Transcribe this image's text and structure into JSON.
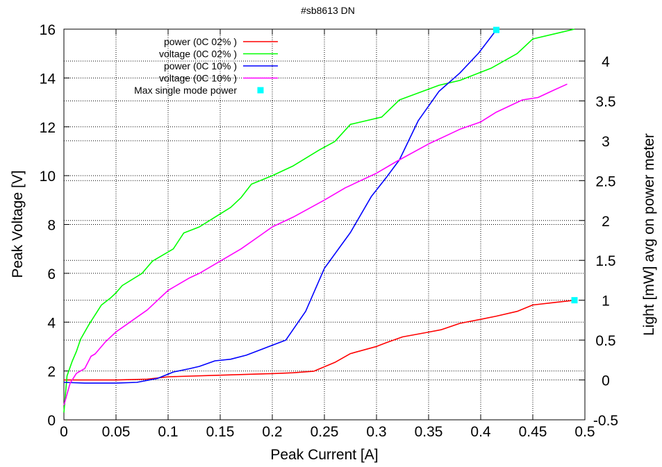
{
  "chart_data": {
    "type": "line",
    "title": "#sb8613 DN",
    "xlabel": "Peak Current [A]",
    "ylabel": "Peak Voltage [V]",
    "y2label": "Light [mW] avg on power meter",
    "xlim": [
      0,
      0.5
    ],
    "ylim": [
      0,
      16
    ],
    "y2lim": [
      -0.5,
      4.4
    ],
    "x_ticks": [
      "0",
      "0.05",
      "0.1",
      "0.15",
      "0.2",
      "0.25",
      "0.3",
      "0.35",
      "0.4",
      "0.45",
      "0.5"
    ],
    "y_ticks": [
      "0",
      "2",
      "4",
      "6",
      "8",
      "10",
      "12",
      "14",
      "16"
    ],
    "y2_ticks": [
      "-0.5",
      "0",
      "0.5",
      "1",
      "1.5",
      "2",
      "2.5",
      "3",
      "3.5",
      "4"
    ],
    "grid": true,
    "legend_position": "top-left",
    "series": [
      {
        "name": "power (0C 02% )",
        "axis": "y2",
        "color": "#ff0000",
        "points": [
          [
            0.0,
            0.0
          ],
          [
            0.02,
            0.0
          ],
          [
            0.05,
            0.0
          ],
          [
            0.08,
            0.01
          ],
          [
            0.1,
            0.04
          ],
          [
            0.15,
            0.06
          ],
          [
            0.2,
            0.08
          ],
          [
            0.22,
            0.09
          ],
          [
            0.24,
            0.11
          ],
          [
            0.26,
            0.22
          ],
          [
            0.275,
            0.33
          ],
          [
            0.3,
            0.42
          ],
          [
            0.31,
            0.47
          ],
          [
            0.325,
            0.54
          ],
          [
            0.35,
            0.6
          ],
          [
            0.362,
            0.63
          ],
          [
            0.38,
            0.71
          ],
          [
            0.4,
            0.76
          ],
          [
            0.415,
            0.8
          ],
          [
            0.435,
            0.86
          ],
          [
            0.45,
            0.94
          ],
          [
            0.47,
            0.97
          ],
          [
            0.49,
            1.0
          ]
        ]
      },
      {
        "name": "voltage (0C 02% )",
        "axis": "y",
        "color": "#00ff00",
        "points": [
          [
            0.0,
            0.3
          ],
          [
            0.003,
            1.8
          ],
          [
            0.008,
            2.4
          ],
          [
            0.012,
            2.8
          ],
          [
            0.016,
            3.3
          ],
          [
            0.024,
            3.9
          ],
          [
            0.03,
            4.3
          ],
          [
            0.036,
            4.7
          ],
          [
            0.045,
            5.0
          ],
          [
            0.05,
            5.2
          ],
          [
            0.056,
            5.5
          ],
          [
            0.075,
            6.0
          ],
          [
            0.085,
            6.5
          ],
          [
            0.105,
            7.0
          ],
          [
            0.115,
            7.65
          ],
          [
            0.13,
            7.9
          ],
          [
            0.145,
            8.3
          ],
          [
            0.16,
            8.7
          ],
          [
            0.17,
            9.1
          ],
          [
            0.18,
            9.65
          ],
          [
            0.2,
            10.0
          ],
          [
            0.22,
            10.4
          ],
          [
            0.245,
            11.05
          ],
          [
            0.26,
            11.4
          ],
          [
            0.275,
            12.1
          ],
          [
            0.29,
            12.25
          ],
          [
            0.305,
            12.4
          ],
          [
            0.322,
            13.1
          ],
          [
            0.36,
            13.7
          ],
          [
            0.38,
            13.9
          ],
          [
            0.41,
            14.4
          ],
          [
            0.435,
            15.0
          ],
          [
            0.45,
            15.6
          ],
          [
            0.475,
            15.85
          ],
          [
            0.49,
            16.0
          ]
        ]
      },
      {
        "name": "power (0C 10% )",
        "axis": "y2",
        "color": "#0000ff",
        "points": [
          [
            0.0,
            -0.03
          ],
          [
            0.02,
            -0.04
          ],
          [
            0.05,
            -0.04
          ],
          [
            0.07,
            -0.03
          ],
          [
            0.09,
            0.02
          ],
          [
            0.105,
            0.1
          ],
          [
            0.12,
            0.14
          ],
          [
            0.13,
            0.17
          ],
          [
            0.145,
            0.24
          ],
          [
            0.16,
            0.26
          ],
          [
            0.175,
            0.31
          ],
          [
            0.195,
            0.41
          ],
          [
            0.213,
            0.5
          ],
          [
            0.232,
            0.86
          ],
          [
            0.25,
            1.4
          ],
          [
            0.275,
            1.85
          ],
          [
            0.295,
            2.3
          ],
          [
            0.31,
            2.55
          ],
          [
            0.322,
            2.76
          ],
          [
            0.34,
            3.25
          ],
          [
            0.36,
            3.62
          ],
          [
            0.38,
            3.85
          ],
          [
            0.398,
            4.1
          ],
          [
            0.415,
            4.39
          ]
        ]
      },
      {
        "name": "voltage (0C 10% )",
        "axis": "y",
        "color": "#ff00ff",
        "points": [
          [
            0.0,
            0.6
          ],
          [
            0.006,
            1.5
          ],
          [
            0.012,
            1.9
          ],
          [
            0.02,
            2.1
          ],
          [
            0.026,
            2.6
          ],
          [
            0.03,
            2.7
          ],
          [
            0.04,
            3.2
          ],
          [
            0.05,
            3.6
          ],
          [
            0.06,
            3.9
          ],
          [
            0.07,
            4.2
          ],
          [
            0.08,
            4.5
          ],
          [
            0.09,
            4.9
          ],
          [
            0.1,
            5.3
          ],
          [
            0.12,
            5.8
          ],
          [
            0.13,
            6.0
          ],
          [
            0.15,
            6.5
          ],
          [
            0.17,
            7.0
          ],
          [
            0.19,
            7.6
          ],
          [
            0.2,
            7.9
          ],
          [
            0.22,
            8.3
          ],
          [
            0.25,
            9.0
          ],
          [
            0.27,
            9.5
          ],
          [
            0.3,
            10.1
          ],
          [
            0.32,
            10.6
          ],
          [
            0.35,
            11.3
          ],
          [
            0.38,
            11.9
          ],
          [
            0.4,
            12.2
          ],
          [
            0.415,
            12.6
          ],
          [
            0.44,
            13.1
          ],
          [
            0.455,
            13.2
          ],
          [
            0.47,
            13.5
          ],
          [
            0.483,
            13.75
          ]
        ]
      },
      {
        "name": "Max single mode power",
        "axis": "y2",
        "color": "#00ffff",
        "marker": "square",
        "points": [
          [
            0.415,
            4.39
          ],
          [
            0.49,
            1.0
          ]
        ]
      }
    ]
  }
}
